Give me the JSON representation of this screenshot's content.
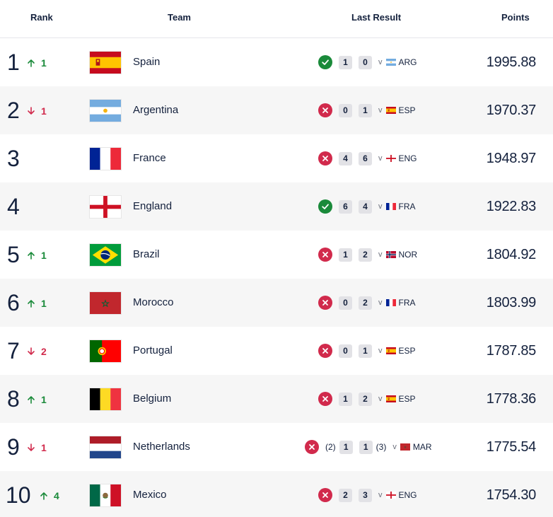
{
  "header": {
    "rank": "Rank",
    "team": "Team",
    "last_result": "Last Result",
    "points": "Points"
  },
  "colors": {
    "up": "#1a8a3a",
    "down": "#d12a4c",
    "win": "#1a8a3a",
    "loss": "#d12a4c"
  },
  "rows": [
    {
      "rank": "1",
      "move_dir": "up",
      "move": "1",
      "flag": "spain-flag",
      "team": "Spain",
      "result": "win",
      "pen_home": "",
      "score_home": "1",
      "score_away": "0",
      "pen_away": "",
      "vs": "v",
      "opp_flag": "argentina-flag",
      "opp": "ARG",
      "points": "1995.88"
    },
    {
      "rank": "2",
      "move_dir": "down",
      "move": "1",
      "flag": "argentina-flag",
      "team": "Argentina",
      "result": "loss",
      "pen_home": "",
      "score_home": "0",
      "score_away": "1",
      "pen_away": "",
      "vs": "v",
      "opp_flag": "spain-flag",
      "opp": "ESP",
      "points": "1970.37"
    },
    {
      "rank": "3",
      "move_dir": "none",
      "move": "",
      "flag": "france-flag",
      "team": "France",
      "result": "loss",
      "pen_home": "",
      "score_home": "4",
      "score_away": "6",
      "pen_away": "",
      "vs": "v",
      "opp_flag": "england-flag",
      "opp": "ENG",
      "points": "1948.97"
    },
    {
      "rank": "4",
      "move_dir": "none",
      "move": "",
      "flag": "england-flag",
      "team": "England",
      "result": "win",
      "pen_home": "",
      "score_home": "6",
      "score_away": "4",
      "pen_away": "",
      "vs": "v",
      "opp_flag": "france-flag",
      "opp": "FRA",
      "points": "1922.83"
    },
    {
      "rank": "5",
      "move_dir": "up",
      "move": "1",
      "flag": "brazil-flag",
      "team": "Brazil",
      "result": "loss",
      "pen_home": "",
      "score_home": "1",
      "score_away": "2",
      "pen_away": "",
      "vs": "v",
      "opp_flag": "norway-flag",
      "opp": "NOR",
      "points": "1804.92"
    },
    {
      "rank": "6",
      "move_dir": "up",
      "move": "1",
      "flag": "morocco-flag",
      "team": "Morocco",
      "result": "loss",
      "pen_home": "",
      "score_home": "0",
      "score_away": "2",
      "pen_away": "",
      "vs": "v",
      "opp_flag": "france-flag",
      "opp": "FRA",
      "points": "1803.99"
    },
    {
      "rank": "7",
      "move_dir": "down",
      "move": "2",
      "flag": "portugal-flag",
      "team": "Portugal",
      "result": "loss",
      "pen_home": "",
      "score_home": "0",
      "score_away": "1",
      "pen_away": "",
      "vs": "v",
      "opp_flag": "spain-flag",
      "opp": "ESP",
      "points": "1787.85"
    },
    {
      "rank": "8",
      "move_dir": "up",
      "move": "1",
      "flag": "belgium-flag",
      "team": "Belgium",
      "result": "loss",
      "pen_home": "",
      "score_home": "1",
      "score_away": "2",
      "pen_away": "",
      "vs": "v",
      "opp_flag": "spain-flag",
      "opp": "ESP",
      "points": "1778.36"
    },
    {
      "rank": "9",
      "move_dir": "down",
      "move": "1",
      "flag": "netherlands-flag",
      "team": "Netherlands",
      "result": "loss",
      "pen_home": "(2)",
      "score_home": "1",
      "score_away": "1",
      "pen_away": "(3)",
      "vs": "v",
      "opp_flag": "morocco-flag",
      "opp": "MAR",
      "points": "1775.54"
    },
    {
      "rank": "10",
      "move_dir": "up",
      "move": "4",
      "flag": "mexico-flag",
      "team": "Mexico",
      "result": "loss",
      "pen_home": "",
      "score_home": "2",
      "score_away": "3",
      "pen_away": "",
      "vs": "v",
      "opp_flag": "england-flag",
      "opp": "ENG",
      "points": "1754.30"
    }
  ]
}
